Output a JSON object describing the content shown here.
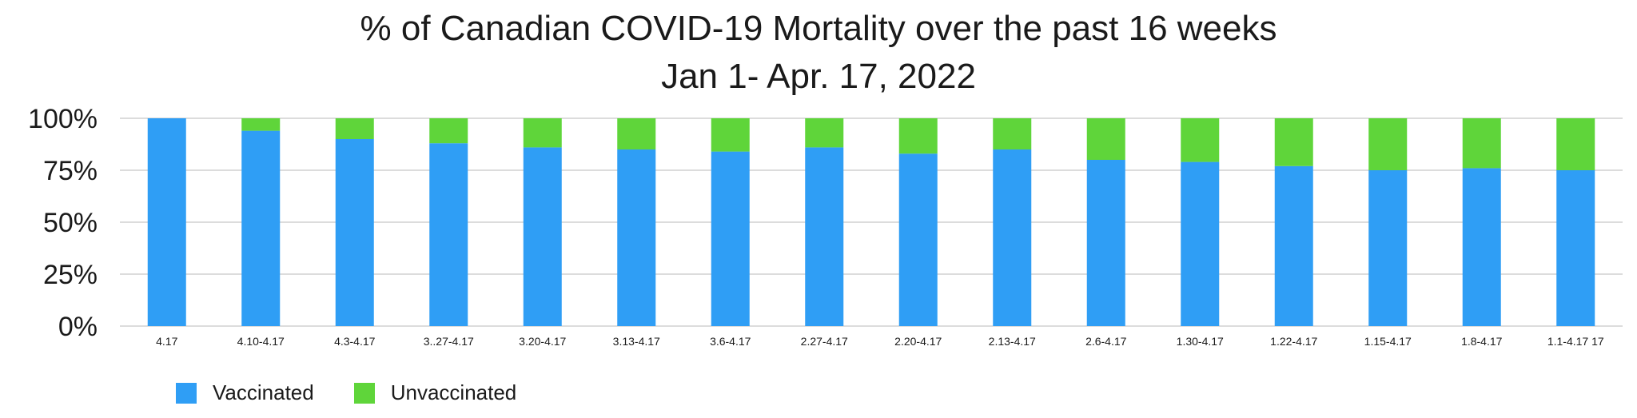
{
  "chart_data": {
    "type": "bar",
    "stacked": true,
    "title": "% of Canadian COVID-19 Mortality over the past 16 weeks",
    "subtitle": "Jan 1- Apr. 17, 2022",
    "yticks": [
      "0%",
      "25%",
      "50%",
      "75%",
      "100%"
    ],
    "ylim": [
      0,
      100
    ],
    "grid": true,
    "legend_position": "bottom-left",
    "categories": [
      "4.17",
      "4.10-4.17",
      "4.3-4.17",
      "3..27-4.17",
      "3.20-4.17",
      "3.13-4.17",
      "3.6-4.17",
      "2.27-4.17",
      "2.20-4.17",
      "2.13-4.17",
      "2.6-4.17",
      "1.30-4.17",
      "1.22-4.17",
      "1.15-4.17",
      "1.8-4.17",
      "1.1-4.17 17"
    ],
    "series": [
      {
        "name": "Vaccinated",
        "color": "#2f9ef5",
        "values": [
          100,
          94,
          90,
          88,
          86,
          85,
          84,
          86,
          83,
          85,
          80,
          79,
          77,
          75,
          76,
          75
        ]
      },
      {
        "name": "Unvaccinated",
        "color": "#5fd53a",
        "values": [
          0,
          6,
          10,
          12,
          14,
          15,
          16,
          14,
          17,
          15,
          20,
          21,
          23,
          25,
          24,
          25
        ]
      }
    ]
  }
}
